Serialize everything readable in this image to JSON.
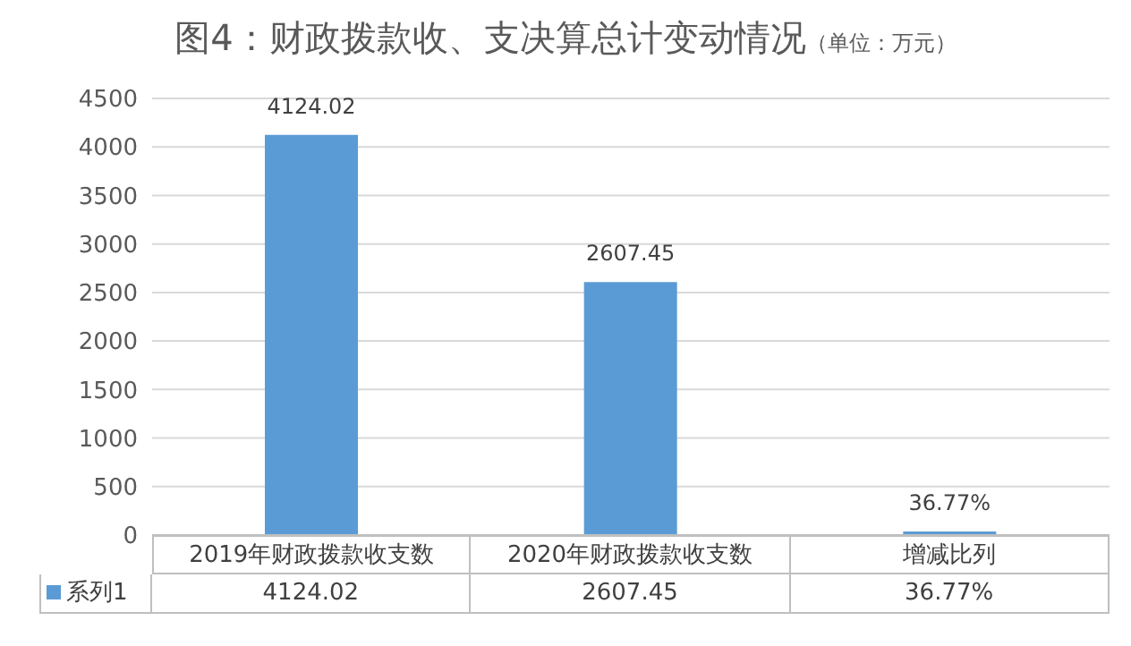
{
  "chart_data": {
    "type": "bar",
    "title": "图4：财政拨款收、支决算总计变动情况",
    "subtitle": "（单位：万元）",
    "categories": [
      "2019年财政拨款收支数",
      "2020年财政拨款收支数",
      "增减比列"
    ],
    "series": [
      {
        "name": "系列1",
        "color": "#5b9bd5",
        "values": [
          4124.02,
          2607.45,
          36.77
        ],
        "value_labels": [
          "4124.02",
          "2607.45",
          "36.77%"
        ]
      }
    ],
    "ylim": [
      0,
      4500
    ],
    "yticks": [
      0,
      500,
      1000,
      1500,
      2000,
      2500,
      3000,
      3500,
      4000,
      4500
    ],
    "grid": "y",
    "legend": "bottom"
  }
}
